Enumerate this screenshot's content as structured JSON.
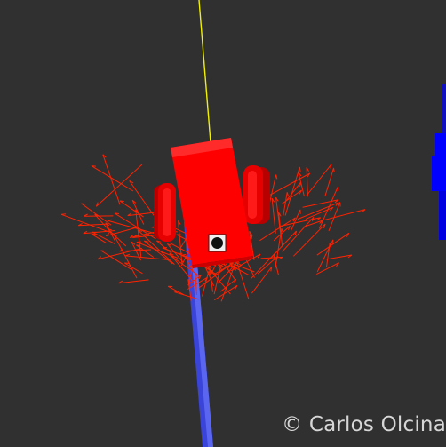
{
  "viewer": {
    "watermark_text": "© Carlos Olcina",
    "background_color": "#303030"
  },
  "scene": {
    "robot_color": "#ff0000",
    "wheel_color": "#e60000",
    "trail_color": "#2f3de8",
    "particle_color": "#ff2200",
    "heading_line_color": "#f2f200",
    "obstacle_color": "#0000ff",
    "sensor_icon": "camera-lens-icon"
  }
}
